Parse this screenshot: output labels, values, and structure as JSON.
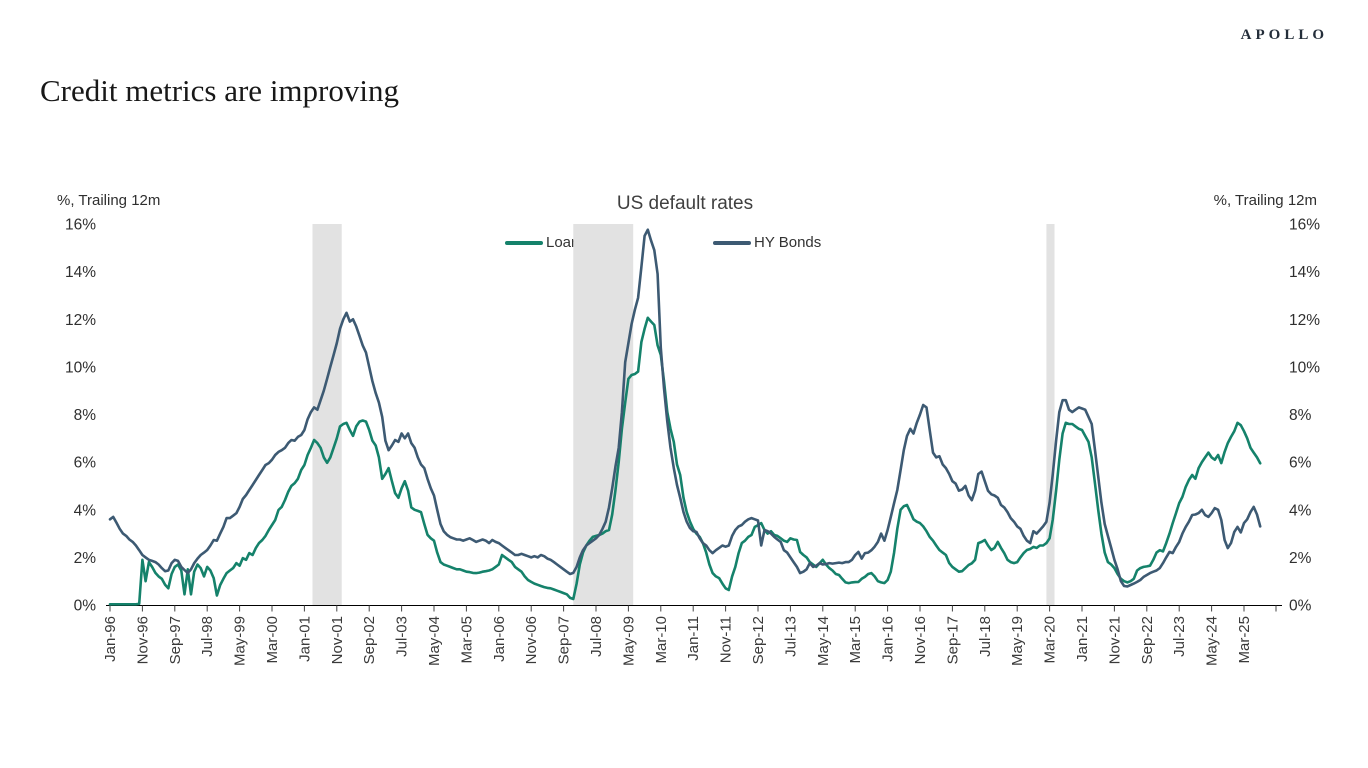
{
  "brand": {
    "logo_text": "APOLLO"
  },
  "page_title": "Credit metrics are improving",
  "axis_units": {
    "left": "%, Trailing 12m",
    "right": "%, Trailing 12m"
  },
  "chart_data": {
    "type": "line",
    "title": "US default rates",
    "ylabel": "%, Trailing 12m",
    "ylim": [
      0,
      16
    ],
    "ytick_step": 2,
    "ytick_labels": [
      "0%",
      "2%",
      "4%",
      "6%",
      "8%",
      "10%",
      "12%",
      "14%",
      "16%"
    ],
    "x_unit": "months since Jan-1996",
    "xtick_every_months": 10,
    "xtick_labels": [
      "Jan-96",
      "Nov-96",
      "Sep-97",
      "Jul-98",
      "May-99",
      "Mar-00",
      "Jan-01",
      "Nov-01",
      "Sep-02",
      "Jul-03",
      "May-04",
      "Mar-05",
      "Jan-06",
      "Nov-06",
      "Sep-07",
      "Jul-08",
      "May-09",
      "Mar-10",
      "Jan-11",
      "Nov-11",
      "Sep-12",
      "Jul-13",
      "May-14",
      "Mar-15",
      "Jan-16",
      "Nov-16",
      "Sep-17",
      "Jul-18",
      "May-19",
      "Mar-20",
      "Jan-21",
      "Nov-21",
      "Sep-22",
      "Jul-23",
      "May-24",
      "Mar-25"
    ],
    "grid": false,
    "legend_position": "top-center",
    "band_color": "#e2e2e2",
    "recession_bands_months": [
      [
        62.5,
        71.5
      ],
      [
        143,
        161.5
      ],
      [
        289,
        291.5
      ]
    ],
    "series": [
      {
        "name": "Loans",
        "color": "#15826b",
        "values": [
          0.03,
          0.03,
          0.03,
          0.03,
          0.03,
          0.03,
          0.03,
          0.03,
          0.03,
          0.05,
          1.9,
          1.0,
          1.8,
          1.6,
          1.35,
          1.2,
          1.1,
          0.85,
          0.7,
          1.3,
          1.6,
          1.7,
          1.45,
          0.45,
          1.5,
          0.45,
          1.4,
          1.7,
          1.55,
          1.2,
          1.6,
          1.45,
          1.13,
          0.4,
          0.84,
          1.1,
          1.34,
          1.45,
          1.55,
          1.76,
          1.65,
          1.97,
          1.9,
          2.18,
          2.1,
          2.39,
          2.6,
          2.73,
          2.9,
          3.15,
          3.36,
          3.57,
          3.99,
          4.12,
          4.41,
          4.75,
          5.0,
          5.12,
          5.3,
          5.67,
          5.88,
          6.3,
          6.6,
          6.93,
          6.8,
          6.6,
          6.2,
          5.97,
          6.2,
          6.6,
          7.0,
          7.5,
          7.6,
          7.65,
          7.35,
          7.1,
          7.5,
          7.7,
          7.75,
          7.7,
          7.35,
          6.9,
          6.7,
          6.2,
          5.3,
          5.5,
          5.75,
          5.2,
          4.7,
          4.5,
          4.9,
          5.2,
          4.8,
          4.1,
          4.0,
          3.95,
          3.9,
          3.4,
          2.95,
          2.8,
          2.7,
          2.2,
          1.8,
          1.7,
          1.65,
          1.6,
          1.55,
          1.5,
          1.5,
          1.45,
          1.4,
          1.38,
          1.35,
          1.34,
          1.36,
          1.4,
          1.42,
          1.45,
          1.5,
          1.6,
          1.7,
          2.1,
          2.0,
          1.9,
          1.8,
          1.6,
          1.5,
          1.4,
          1.2,
          1.05,
          0.97,
          0.9,
          0.85,
          0.8,
          0.75,
          0.72,
          0.7,
          0.65,
          0.6,
          0.55,
          0.5,
          0.45,
          0.3,
          0.25,
          0.9,
          1.7,
          2.2,
          2.5,
          2.7,
          2.86,
          2.9,
          2.94,
          3.0,
          3.1,
          3.15,
          3.8,
          4.8,
          6.0,
          7.4,
          8.5,
          9.5,
          9.66,
          9.7,
          9.8,
          11.05,
          11.6,
          12.06,
          11.9,
          11.76,
          10.9,
          10.5,
          9.4,
          8.1,
          7.4,
          6.85,
          5.9,
          5.46,
          4.5,
          3.9,
          3.5,
          3.2,
          3.0,
          2.86,
          2.6,
          2.2,
          1.7,
          1.34,
          1.2,
          1.13,
          0.9,
          0.7,
          0.63,
          1.2,
          1.6,
          2.18,
          2.6,
          2.7,
          2.86,
          2.94,
          3.28,
          3.35,
          3.44,
          3.15,
          3.0,
          3.1,
          2.94,
          2.9,
          2.8,
          2.7,
          2.65,
          2.8,
          2.75,
          2.73,
          2.23,
          2.1,
          2.0,
          1.8,
          1.7,
          1.6,
          1.75,
          1.9,
          1.7,
          1.55,
          1.45,
          1.3,
          1.26,
          1.1,
          0.95,
          0.92,
          0.95,
          0.96,
          0.97,
          1.1,
          1.18,
          1.3,
          1.34,
          1.2,
          1.0,
          0.95,
          0.92,
          1.05,
          1.4,
          2.2,
          3.2,
          4.0,
          4.15,
          4.2,
          3.9,
          3.6,
          3.5,
          3.44,
          3.3,
          3.1,
          2.86,
          2.7,
          2.5,
          2.31,
          2.2,
          2.1,
          1.76,
          1.6,
          1.5,
          1.4,
          1.42,
          1.55,
          1.68,
          1.75,
          1.9,
          2.6,
          2.65,
          2.73,
          2.5,
          2.31,
          2.4,
          2.65,
          2.4,
          2.18,
          1.9,
          1.8,
          1.76,
          1.8,
          2.0,
          2.18,
          2.31,
          2.35,
          2.44,
          2.4,
          2.5,
          2.5,
          2.6,
          2.8,
          3.6,
          4.8,
          6.1,
          7.2,
          7.65,
          7.6,
          7.6,
          7.5,
          7.4,
          7.35,
          7.1,
          6.85,
          6.2,
          5.1,
          4.0,
          3.0,
          2.2,
          1.8,
          1.7,
          1.55,
          1.3,
          1.1,
          1.0,
          0.95,
          1.0,
          1.1,
          1.45,
          1.55,
          1.6,
          1.62,
          1.65,
          1.9,
          2.2,
          2.3,
          2.25,
          2.6,
          3.0,
          3.44,
          3.86,
          4.28,
          4.54,
          4.96,
          5.25,
          5.46,
          5.3,
          5.75,
          6.0,
          6.2,
          6.4,
          6.2,
          6.1,
          6.3,
          5.96,
          6.43,
          6.8,
          7.06,
          7.3,
          7.65,
          7.55,
          7.3,
          7.0,
          6.6,
          6.4,
          6.2,
          5.95
        ]
      },
      {
        "name": "HY Bonds",
        "color": "#3d5a73",
        "values": [
          3.6,
          3.7,
          3.45,
          3.2,
          3.0,
          2.9,
          2.75,
          2.65,
          2.5,
          2.3,
          2.1,
          2.0,
          1.9,
          1.85,
          1.8,
          1.7,
          1.55,
          1.42,
          1.45,
          1.76,
          1.9,
          1.85,
          1.6,
          1.47,
          1.34,
          1.5,
          1.76,
          1.95,
          2.1,
          2.2,
          2.31,
          2.5,
          2.73,
          2.7,
          3.0,
          3.28,
          3.65,
          3.65,
          3.75,
          3.86,
          4.12,
          4.45,
          4.62,
          4.83,
          5.04,
          5.25,
          5.46,
          5.67,
          5.88,
          5.96,
          6.1,
          6.3,
          6.43,
          6.5,
          6.6,
          6.8,
          6.93,
          6.9,
          7.06,
          7.14,
          7.35,
          7.8,
          8.1,
          8.3,
          8.2,
          8.6,
          9.0,
          9.5,
          10.0,
          10.5,
          11.0,
          11.6,
          12.0,
          12.27,
          11.9,
          12.0,
          11.7,
          11.3,
          10.9,
          10.6,
          10.0,
          9.4,
          8.9,
          8.5,
          7.9,
          6.9,
          6.5,
          6.7,
          6.93,
          6.85,
          7.2,
          7.0,
          7.2,
          6.8,
          6.6,
          6.2,
          5.9,
          5.75,
          5.3,
          4.9,
          4.6,
          4.0,
          3.4,
          3.1,
          2.95,
          2.85,
          2.8,
          2.75,
          2.75,
          2.7,
          2.75,
          2.8,
          2.73,
          2.65,
          2.7,
          2.75,
          2.7,
          2.6,
          2.73,
          2.65,
          2.6,
          2.5,
          2.4,
          2.3,
          2.2,
          2.1,
          2.1,
          2.15,
          2.1,
          2.05,
          2.0,
          2.05,
          2.0,
          2.1,
          2.05,
          1.95,
          1.9,
          1.8,
          1.7,
          1.6,
          1.5,
          1.4,
          1.3,
          1.35,
          1.6,
          2.0,
          2.3,
          2.5,
          2.6,
          2.7,
          2.8,
          2.94,
          3.2,
          3.5,
          4.1,
          4.9,
          5.8,
          6.6,
          8.1,
          10.2,
          11.0,
          11.8,
          12.4,
          12.9,
          14.2,
          15.5,
          15.76,
          15.3,
          14.9,
          13.9,
          10.8,
          9.1,
          7.7,
          6.6,
          5.75,
          5.04,
          4.5,
          3.9,
          3.5,
          3.23,
          3.1,
          3.07,
          2.8,
          2.6,
          2.5,
          2.3,
          2.18,
          2.3,
          2.4,
          2.5,
          2.45,
          2.5,
          2.9,
          3.15,
          3.3,
          3.36,
          3.5,
          3.6,
          3.65,
          3.6,
          3.55,
          2.5,
          3.15,
          3.1,
          3.0,
          2.86,
          2.75,
          2.65,
          2.3,
          2.2,
          2.0,
          1.8,
          1.6,
          1.34,
          1.4,
          1.5,
          1.76,
          1.6,
          1.65,
          1.76,
          1.7,
          1.72,
          1.76,
          1.74,
          1.76,
          1.78,
          1.76,
          1.8,
          1.8,
          1.9,
          2.1,
          2.23,
          1.95,
          2.18,
          2.2,
          2.3,
          2.45,
          2.65,
          3.0,
          2.7,
          3.15,
          3.7,
          4.28,
          4.83,
          5.67,
          6.5,
          7.1,
          7.4,
          7.2,
          7.65,
          8.0,
          8.4,
          8.3,
          7.35,
          6.4,
          6.2,
          6.25,
          5.9,
          5.75,
          5.5,
          5.2,
          5.1,
          4.8,
          4.85,
          5.0,
          4.6,
          4.4,
          4.8,
          5.5,
          5.6,
          5.2,
          4.8,
          4.65,
          4.6,
          4.5,
          4.2,
          4.1,
          3.9,
          3.65,
          3.5,
          3.3,
          3.2,
          2.9,
          2.7,
          2.6,
          3.1,
          3.0,
          3.15,
          3.3,
          3.5,
          4.3,
          5.5,
          6.9,
          8.1,
          8.6,
          8.6,
          8.2,
          8.1,
          8.2,
          8.3,
          8.25,
          8.2,
          7.9,
          7.6,
          6.5,
          5.4,
          4.3,
          3.4,
          2.9,
          2.4,
          1.9,
          1.5,
          1.0,
          0.8,
          0.78,
          0.84,
          0.9,
          0.97,
          1.05,
          1.18,
          1.26,
          1.34,
          1.4,
          1.45,
          1.55,
          1.76,
          2.0,
          2.23,
          2.18,
          2.44,
          2.65,
          3.0,
          3.28,
          3.5,
          3.78,
          3.8,
          3.86,
          4.0,
          3.78,
          3.7,
          3.86,
          4.07,
          4.0,
          3.57,
          2.73,
          2.39,
          2.6,
          3.07,
          3.28,
          3.05,
          3.44,
          3.6,
          3.9,
          4.12,
          3.8,
          3.3
        ]
      }
    ]
  }
}
